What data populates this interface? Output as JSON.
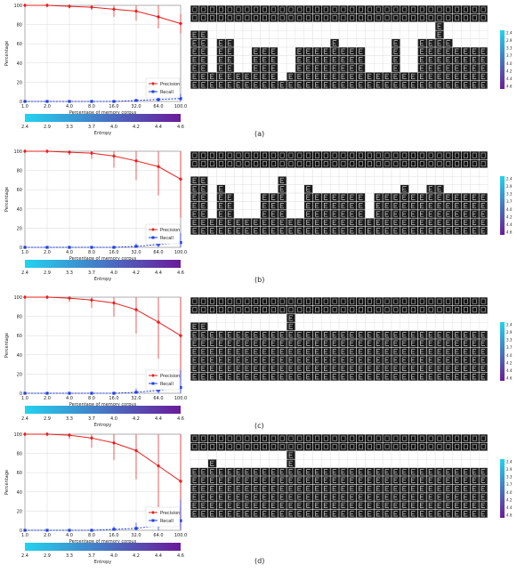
{
  "chart_data": [
    {
      "type": "line",
      "panel_label": "(a)",
      "xlabel": "Percentage of memory corpus",
      "ylabel": "Percentage",
      "categories": [
        "1.0",
        "2.0",
        "4.0",
        "8.0",
        "16.0",
        "32.0",
        "64.0",
        "100.0"
      ],
      "yticks": [
        "0",
        "20",
        "40",
        "60",
        "80",
        "100"
      ],
      "ylim": [
        0,
        100
      ],
      "grid": true,
      "legend_position": "bottom-right",
      "series": [
        {
          "name": "Precision",
          "color": "#e8201f",
          "marker": "diamond",
          "values": [
            100,
            100,
            99,
            98,
            96,
            94,
            88,
            81
          ],
          "err": [
            0,
            1,
            2,
            3,
            8,
            10,
            12,
            10
          ]
        },
        {
          "name": "Recall",
          "color": "#1f3fe8",
          "marker": "square",
          "values": [
            0,
            0,
            0,
            0,
            0,
            1,
            2,
            3
          ],
          "err": [
            0,
            0,
            0,
            0,
            0,
            1,
            3,
            5
          ]
        }
      ],
      "entropy_bar": {
        "label": "Entropy",
        "ticks": [
          "2.4",
          "2.9",
          "3.3",
          "3.7",
          "4.0",
          "4.2",
          "4.4",
          "4.6"
        ],
        "start_color": "#22d3ee",
        "end_color": "#6a1b9a"
      },
      "grid_stack_heights": [
        7,
        7,
        2,
        6,
        6,
        2,
        2,
        5,
        5,
        5,
        1,
        2,
        5,
        5,
        5,
        5,
        6,
        5,
        5,
        5,
        2,
        2,
        2,
        6,
        2,
        2,
        6,
        6,
        9,
        6,
        5,
        5,
        5,
        5
      ],
      "side_colorbar": {
        "ticks": [
          "2.4",
          "2.9",
          "3.3",
          "3.7",
          "4.0",
          "4.2",
          "4.4",
          "4.6"
        ]
      }
    },
    {
      "type": "line",
      "panel_label": "(b)",
      "xlabel": "Percentage of memory corpus",
      "ylabel": "Percentage",
      "categories": [
        "1.0",
        "2.0",
        "4.0",
        "8.0",
        "16.0",
        "32.0",
        "64.0",
        "100.0"
      ],
      "yticks": [
        "0",
        "20",
        "40",
        "60",
        "80",
        "100"
      ],
      "ylim": [
        0,
        100
      ],
      "grid": true,
      "legend_position": "bottom-right",
      "series": [
        {
          "name": "Precision",
          "color": "#e8201f",
          "marker": "diamond",
          "values": [
            100,
            100,
            99,
            98,
            95,
            90,
            84,
            71
          ],
          "err": [
            0,
            1,
            3,
            6,
            12,
            20,
            30,
            40
          ]
        },
        {
          "name": "Recall",
          "color": "#1f3fe8",
          "marker": "square",
          "values": [
            0,
            0,
            0,
            0,
            0,
            1,
            3,
            5
          ],
          "err": [
            0,
            0,
            0,
            0,
            0,
            3,
            8,
            10
          ]
        }
      ],
      "entropy_bar": {
        "label": "Entropy",
        "ticks": [
          "2.4",
          "2.9",
          "3.3",
          "3.7",
          "4.0",
          "4.2",
          "4.4",
          "4.6"
        ],
        "start_color": "#22d3ee",
        "end_color": "#6a1b9a"
      },
      "grid_stack_heights": [
        7,
        7,
        2,
        6,
        5,
        2,
        2,
        2,
        5,
        5,
        7,
        2,
        2,
        6,
        5,
        5,
        5,
        5,
        5,
        5,
        2,
        5,
        5,
        5,
        6,
        5,
        5,
        6,
        6,
        5,
        5,
        5,
        5,
        5
      ],
      "side_colorbar": {
        "ticks": [
          "2.4",
          "2.9",
          "3.3",
          "3.7",
          "4.0",
          "4.2",
          "4.4",
          "4.6"
        ]
      }
    },
    {
      "type": "line",
      "panel_label": "(c)",
      "xlabel": "Percentage of memory corpus",
      "ylabel": "Percentage",
      "categories": [
        "1.0",
        "2.0",
        "4.0",
        "8.0",
        "16.0",
        "32.0",
        "64.0",
        "100.0"
      ],
      "yticks": [
        "0",
        "20",
        "40",
        "60",
        "80",
        "100"
      ],
      "ylim": [
        0,
        100
      ],
      "grid": true,
      "legend_position": "bottom-right",
      "series": [
        {
          "name": "Precision",
          "color": "#e8201f",
          "marker": "diamond",
          "values": [
            100,
            100,
            99,
            97,
            94,
            87,
            74,
            60
          ],
          "err": [
            0,
            1,
            4,
            8,
            14,
            25,
            38,
            45
          ]
        },
        {
          "name": "Recall",
          "color": "#1f3fe8",
          "marker": "square",
          "values": [
            0,
            0,
            0,
            0,
            0,
            1,
            3,
            6
          ],
          "err": [
            0,
            0,
            0,
            0,
            1,
            4,
            10,
            18
          ]
        }
      ],
      "entropy_bar": {
        "label": "Entropy",
        "ticks": [
          "2.4",
          "2.9",
          "3.3",
          "3.7",
          "4.0",
          "4.2",
          "4.4",
          "4.6"
        ],
        "start_color": "#22d3ee",
        "end_color": "#6a1b9a"
      },
      "grid_stack_heights": [
        7,
        7,
        6,
        6,
        6,
        6,
        6,
        6,
        6,
        6,
        6,
        8,
        6,
        6,
        6,
        6,
        6,
        6,
        6,
        6,
        6,
        6,
        6,
        6,
        6,
        6,
        6,
        6,
        6,
        6,
        6,
        6,
        6,
        6
      ],
      "side_colorbar": {
        "ticks": [
          "2.4",
          "2.9",
          "3.3",
          "3.7",
          "4.0",
          "4.2",
          "4.4",
          "4.6"
        ]
      }
    },
    {
      "type": "line",
      "panel_label": "(d)",
      "xlabel": "Percentage of memory corpus",
      "ylabel": "Percentage",
      "categories": [
        "1.0",
        "2.0",
        "4.0",
        "8.0",
        "16.0",
        "32.0",
        "64.0",
        "100.0"
      ],
      "yticks": [
        "0",
        "20",
        "40",
        "60",
        "80",
        "100"
      ],
      "ylim": [
        0,
        100
      ],
      "grid": true,
      "legend_position": "bottom-right",
      "series": [
        {
          "name": "Precision",
          "color": "#e8201f",
          "marker": "diamond",
          "values": [
            100,
            100,
            99,
            96,
            91,
            83,
            67,
            51
          ],
          "err": [
            0,
            1,
            4,
            10,
            18,
            30,
            45,
            50
          ]
        },
        {
          "name": "Recall",
          "color": "#1f3fe8",
          "marker": "square",
          "values": [
            0,
            0,
            0,
            0,
            1,
            2,
            5,
            10
          ],
          "err": [
            0,
            0,
            0,
            1,
            3,
            6,
            12,
            22
          ]
        }
      ],
      "entropy_bar": {
        "label": "Entropy",
        "ticks": [
          "2.4",
          "2.9",
          "3.3",
          "3.7",
          "4.0",
          "4.2",
          "4.4",
          "4.6"
        ],
        "start_color": "#22d3ee",
        "end_color": "#6a1b9a"
      },
      "grid_stack_heights": [
        6,
        6,
        7,
        6,
        6,
        6,
        6,
        6,
        6,
        6,
        6,
        8,
        6,
        6,
        6,
        6,
        6,
        6,
        6,
        6,
        6,
        6,
        6,
        6,
        6,
        6,
        6,
        6,
        6,
        6,
        6,
        6,
        6,
        6
      ],
      "side_colorbar": {
        "ticks": [
          "2.4",
          "2.9",
          "3.3",
          "3.7",
          "4.0",
          "4.2",
          "4.4",
          "4.6"
        ]
      }
    }
  ]
}
